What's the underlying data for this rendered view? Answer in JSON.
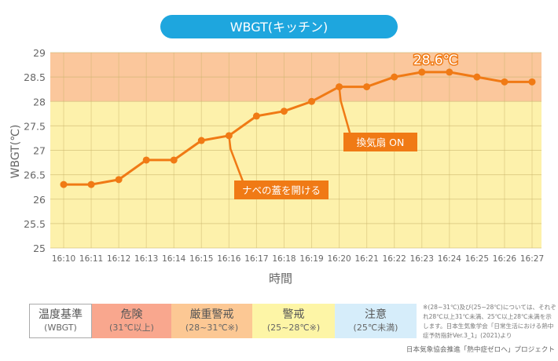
{
  "chart_data": {
    "type": "line",
    "title": "WBGT(キッチン)",
    "xlabel": "時間",
    "ylabel": "WBGT(℃)",
    "ylim": [
      25,
      29
    ],
    "yticks": [
      "25",
      "25.5",
      "26",
      "26.5",
      "27",
      "27.5",
      "28",
      "28.5",
      "29"
    ],
    "categories": [
      "16:10",
      "16:11",
      "16:12",
      "16:13",
      "16:14",
      "16:15",
      "16:16",
      "16:17",
      "16:18",
      "16:19",
      "16:20",
      "16:21",
      "16:22",
      "16:23",
      "16:24",
      "16:25",
      "16:26",
      "16:27"
    ],
    "series": [
      {
        "name": "WBGT",
        "values": [
          26.3,
          26.3,
          26.4,
          26.8,
          26.8,
          27.2,
          27.3,
          27.7,
          27.8,
          28.0,
          28.3,
          28.3,
          28.5,
          28.6,
          28.6,
          28.5,
          28.4,
          28.4
        ]
      }
    ],
    "bands": [
      {
        "from": 28,
        "to": 29,
        "color": "#fbc79c"
      },
      {
        "from": 25,
        "to": 28,
        "color": "#fdf1ab"
      }
    ],
    "line_color": "#f07a15",
    "annotations": [
      {
        "text": "28.6℃",
        "at": "16:23"
      },
      {
        "text": "ナベの蓋を開ける",
        "at": "16:16"
      },
      {
        "text": "換気扇 ON",
        "at": "16:20"
      }
    ]
  },
  "legend": {
    "header": {
      "name": "温度基準",
      "range": "(WBGT)"
    },
    "items": [
      {
        "name": "危険",
        "range": "(31℃以上)",
        "color": "#f9a78e"
      },
      {
        "name": "厳重警戒",
        "range": "(28~31℃※)",
        "color": "#fcc894"
      },
      {
        "name": "警戒",
        "range": "(25~28℃※)",
        "color": "#fdf5a6"
      },
      {
        "name": "注意",
        "range": "(25℃未満)",
        "color": "#d6edfa"
      }
    ]
  },
  "note": "※(28~31℃)及び(25~28℃)については、それぞれ28℃以上31℃未満、25℃以上28℃未満を示します。日本生気象学会「日常生活における熱中症予防指針Ver.3_1」(2021)より",
  "credit": "日本気象協会推進「熱中症ゼロへ」プロジェクト"
}
